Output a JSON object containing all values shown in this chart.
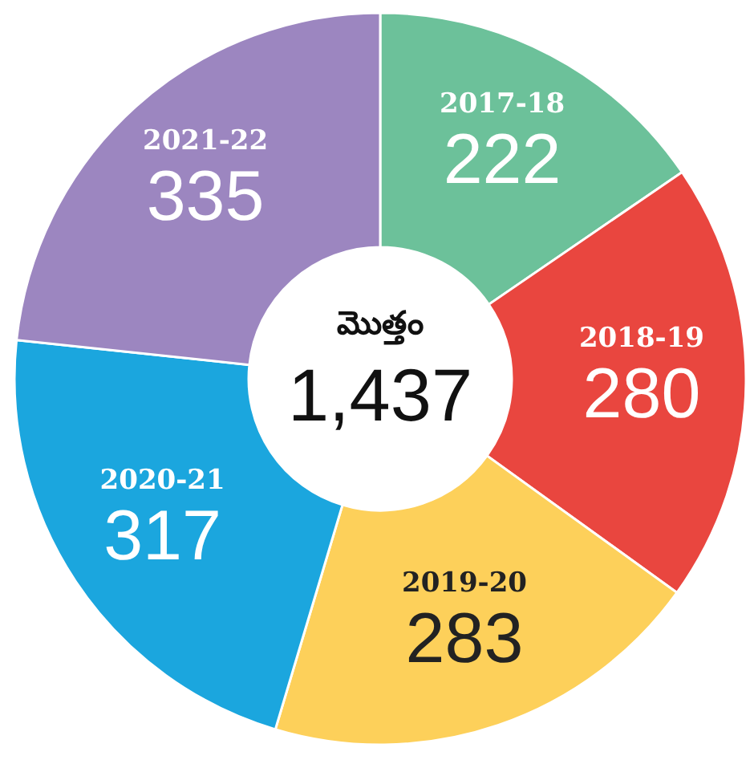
{
  "chart_data": {
    "type": "donut",
    "categories": [
      "2017-18",
      "2018-19",
      "2019-20",
      "2020-21",
      "2021-22"
    ],
    "values": [
      222,
      280,
      283,
      317,
      335
    ],
    "colors": [
      "#6cc19a",
      "#e9463f",
      "#fdd05a",
      "#1ba6de",
      "#9c86c0"
    ],
    "data_labels": true,
    "annotations": [
      "మొత్తం",
      "1,437"
    ]
  }
}
